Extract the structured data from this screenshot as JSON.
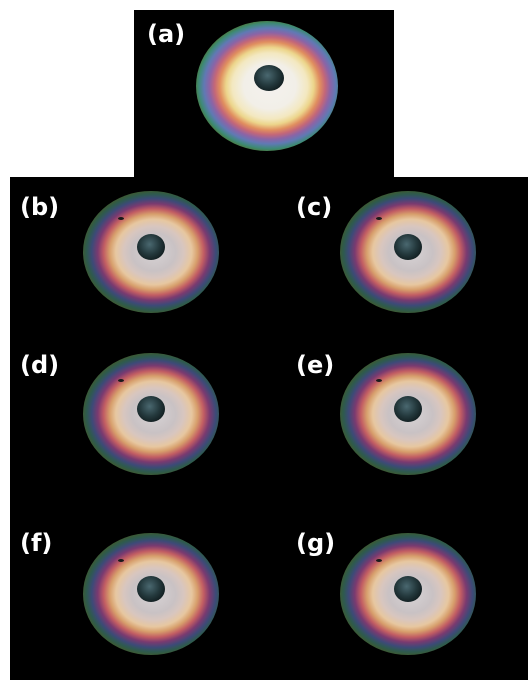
{
  "figure": {
    "panels": [
      {
        "id": "a",
        "label": "(a)"
      },
      {
        "id": "b",
        "label": "(b)"
      },
      {
        "id": "c",
        "label": "(c)"
      },
      {
        "id": "d",
        "label": "(d)"
      },
      {
        "id": "e",
        "label": "(e)"
      },
      {
        "id": "f",
        "label": "(f)"
      },
      {
        "id": "g",
        "label": "(g)"
      }
    ]
  },
  "colors": {
    "background": "#000000",
    "label": "#ffffff",
    "ring_inner": "#d7d3d5",
    "ring_orange": "#d79f6c",
    "ring_red": "#c25d63",
    "ring_purple": "#7a3a70",
    "ring_blue": "#3d4a78",
    "ring_green": "#3b5a35",
    "pupil": "#24393d"
  }
}
